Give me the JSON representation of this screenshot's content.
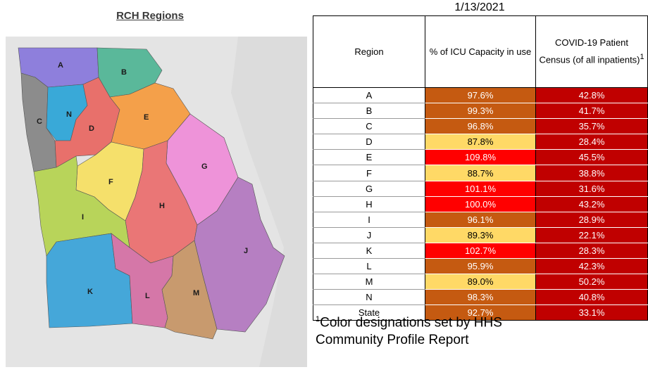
{
  "map": {
    "title": "RCH Regions",
    "regions": [
      {
        "label": "A",
        "color": "#8e7fdc"
      },
      {
        "label": "B",
        "color": "#5ab89a"
      },
      {
        "label": "C",
        "color": "#8c8c8c"
      },
      {
        "label": "N",
        "color": "#39a9d8"
      },
      {
        "label": "D",
        "color": "#e8706b"
      },
      {
        "label": "E",
        "color": "#f4a04a"
      },
      {
        "label": "G",
        "color": "#ee93d9"
      },
      {
        "label": "F",
        "color": "#f5e06b"
      },
      {
        "label": "H",
        "color": "#ea7676"
      },
      {
        "label": "I",
        "color": "#b8d45a"
      },
      {
        "label": "J",
        "color": "#b67fc2"
      },
      {
        "label": "K",
        "color": "#45a7d9"
      },
      {
        "label": "L",
        "color": "#d577a8"
      },
      {
        "label": "M",
        "color": "#c89a6e"
      }
    ]
  },
  "table": {
    "date": "1/13/2021",
    "headers": {
      "region": "Region",
      "icu": "% of ICU Capacity in use",
      "census": "COVID-19 Patient Census (of all inpatients)",
      "census_sup": "1"
    },
    "rows": [
      {
        "region": "A",
        "icu": "97.6%",
        "census": "42.8%",
        "icu_level": "orange"
      },
      {
        "region": "B",
        "icu": "99.3%",
        "census": "41.7%",
        "icu_level": "orange"
      },
      {
        "region": "C",
        "icu": "96.8%",
        "census": "35.7%",
        "icu_level": "orange"
      },
      {
        "region": "D",
        "icu": "87.8%",
        "census": "28.4%",
        "icu_level": "yellow"
      },
      {
        "region": "E",
        "icu": "109.8%",
        "census": "45.5%",
        "icu_level": "red"
      },
      {
        "region": "F",
        "icu": "88.7%",
        "census": "38.8%",
        "icu_level": "yellow"
      },
      {
        "region": "G",
        "icu": "101.1%",
        "census": "31.6%",
        "icu_level": "red"
      },
      {
        "region": "H",
        "icu": "100.0%",
        "census": "43.2%",
        "icu_level": "red"
      },
      {
        "region": "I",
        "icu": "96.1%",
        "census": "28.9%",
        "icu_level": "orange"
      },
      {
        "region": "J",
        "icu": "89.3%",
        "census": "22.1%",
        "icu_level": "yellow"
      },
      {
        "region": "K",
        "icu": "102.7%",
        "census": "28.3%",
        "icu_level": "red"
      },
      {
        "region": "L",
        "icu": "95.9%",
        "census": "42.3%",
        "icu_level": "orange"
      },
      {
        "region": "M",
        "icu": "89.0%",
        "census": "50.2%",
        "icu_level": "yellow"
      },
      {
        "region": "N",
        "icu": "98.3%",
        "census": "40.8%",
        "icu_level": "orange"
      }
    ],
    "state": {
      "region": "State",
      "icu": "92.7%",
      "census": "33.1%",
      "icu_level": "orange"
    }
  },
  "footnote": {
    "sup": "1",
    "text": "Color designations set by HHS Community Profile Report"
  },
  "colors": {
    "orange": "#c55a11",
    "yellow": "#ffd966",
    "red": "#ff0000",
    "dark_red": "#c00000"
  }
}
